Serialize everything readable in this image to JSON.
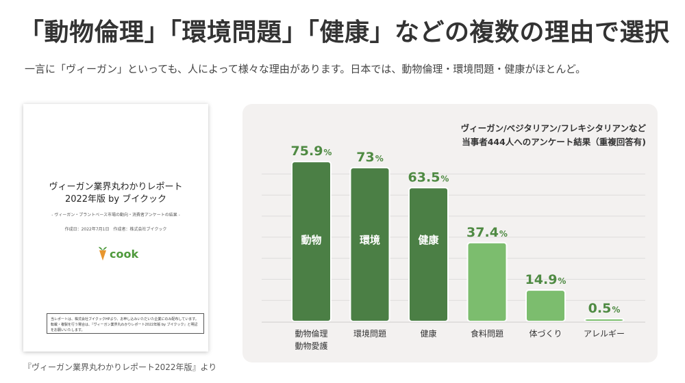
{
  "headline": "「動物倫理」「環境問題」「健康」などの複数の理由で選択",
  "subtitle": "一言に「ヴィーガン」といっても、人によって様々な理由があります。日本では、動物倫理・環境問題・健康がほとんど。",
  "cover": {
    "title_line1": "ヴィーガン業界丸わかりレポート",
    "title_line2": "2022年版 by ブイクック",
    "subtitle": "- ヴィーガン・プラントベース市場の動向・消費者アンケートの結果 -",
    "meta": "作成日：2022年7月1日　作成者：株式会社ブイクック",
    "logo_text": "cook",
    "note": "当レポートは、株式会社ブイクックHPより、お申し込みいただいた企業にのみ配布しています。転載・複製を行う場合は、『ヴィーガン業界丸わかりレポート2022年版 by ブイクック』と明記をお願いいたします。"
  },
  "caption": "『ヴィーガン業界丸わかりレポート2022年版』より",
  "chart_note": {
    "line1": "ヴィーガン/ベジタリアン/フレキシタリアンなど",
    "line2": "当事者444人へのアンケート結果（重複回答有)"
  },
  "colors": {
    "dark_bar": "#4b7f45",
    "light_bar": "#7cbd6e",
    "value_label": "#4f8a43",
    "panel_bg": "#f3f1f0",
    "logo_green": "#4f9a3c",
    "logo_orange": "#e8962f"
  },
  "chart_data": {
    "type": "bar",
    "categories": [
      "動物倫理\n動物愛護",
      "環境問題",
      "健康",
      "食料問題",
      "体づくり",
      "アレルギー"
    ],
    "values": [
      75.9,
      73,
      63.5,
      37.4,
      14.9,
      0.5
    ],
    "value_labels": [
      "75.9",
      "73",
      "63.5",
      "37.4",
      "14.9",
      "0.5"
    ],
    "unit": "%",
    "inner_labels": [
      "動物",
      "環境",
      "健康",
      "",
      "",
      ""
    ],
    "dark": [
      true,
      true,
      true,
      false,
      false,
      false
    ],
    "ylim": [
      0,
      80
    ],
    "grid": true,
    "title": "",
    "xlabel": "",
    "ylabel": ""
  }
}
